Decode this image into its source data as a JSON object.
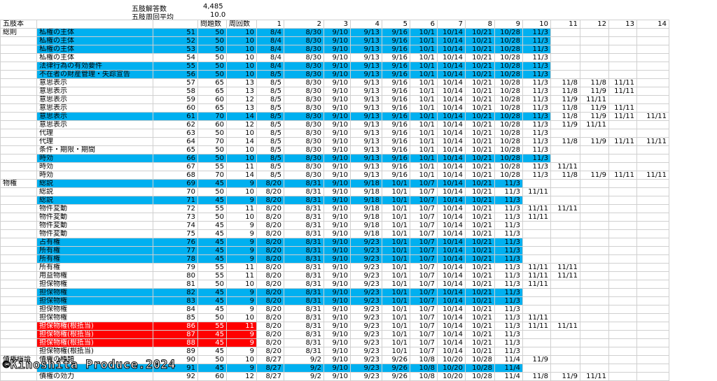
{
  "summary": {
    "answers_label": "五肢解答数",
    "answers": "4,485",
    "average_label": "五肢周回平均",
    "average": "10.0"
  },
  "table": {
    "header": {
      "book": "五肢本",
      "questions": "問題数",
      "rounds": "周回数",
      "round_numbers": [
        1,
        2,
        3,
        4,
        5,
        6,
        7,
        8,
        9,
        10,
        11,
        12,
        13,
        14
      ]
    },
    "rows": [
      {
        "group": "総則",
        "topic": "私権の主体",
        "no": 51,
        "questions": 50,
        "rounds": 10,
        "fill": "blue",
        "dates": [
          "8/4",
          "8/30",
          "9/10",
          "9/13",
          "9/16",
          "10/1",
          "10/14",
          "10/21",
          "10/28",
          "11/3"
        ]
      },
      {
        "topic": "私権の主体",
        "no": 52,
        "questions": 50,
        "rounds": 10,
        "fill": "blue",
        "dates": [
          "8/4",
          "8/30",
          "9/10",
          "9/13",
          "9/16",
          "10/1",
          "10/14",
          "10/21",
          "10/28",
          "11/3"
        ]
      },
      {
        "topic": "私権の主体",
        "no": 53,
        "questions": 50,
        "rounds": 10,
        "fill": "blue",
        "dates": [
          "8/4",
          "8/30",
          "9/10",
          "9/13",
          "9/16",
          "10/1",
          "10/14",
          "10/21",
          "10/28",
          "11/3"
        ]
      },
      {
        "topic": "私権の主体",
        "no": 54,
        "questions": 50,
        "rounds": 10,
        "dates": [
          "8/4",
          "8/30",
          "9/10",
          "9/13",
          "9/16",
          "10/1",
          "10/14",
          "10/21",
          "10/28",
          "11/3"
        ]
      },
      {
        "topic": "法律行為の有効要件",
        "no": 55,
        "questions": 50,
        "rounds": 10,
        "fill": "blue",
        "dates": [
          "8/4",
          "8/30",
          "9/10",
          "9/13",
          "9/16",
          "10/1",
          "10/14",
          "10/21",
          "10/28",
          "11/3"
        ]
      },
      {
        "topic": "不在者の財産管理・失踪宣告",
        "no": 56,
        "questions": 50,
        "rounds": 10,
        "fill": "blue",
        "dates": [
          "8/5",
          "8/30",
          "9/10",
          "9/13",
          "9/16",
          "10/1",
          "10/14",
          "10/21",
          "10/28",
          "11/3"
        ]
      },
      {
        "topic": "意思表示",
        "no": 57,
        "questions": 65,
        "rounds": 13,
        "dates": [
          "8/5",
          "8/30",
          "9/10",
          "9/13",
          "9/16",
          "10/1",
          "10/14",
          "10/21",
          "10/28",
          "11/3",
          "11/8",
          "11/8",
          "11/11"
        ]
      },
      {
        "topic": "意思表示",
        "no": 58,
        "questions": 65,
        "rounds": 13,
        "dates": [
          "8/5",
          "8/30",
          "9/10",
          "9/13",
          "9/16",
          "10/1",
          "10/14",
          "10/21",
          "10/28",
          "11/3",
          "11/8",
          "11/9",
          "11/11"
        ]
      },
      {
        "topic": "意思表示",
        "no": 59,
        "questions": 60,
        "rounds": 12,
        "dates": [
          "8/5",
          "8/30",
          "9/10",
          "9/13",
          "9/16",
          "10/1",
          "10/14",
          "10/21",
          "10/28",
          "11/3",
          "11/9",
          "11/11"
        ]
      },
      {
        "topic": "意思表示",
        "no": 60,
        "questions": 65,
        "rounds": 13,
        "dates": [
          "8/5",
          "8/30",
          "9/10",
          "9/13",
          "9/16",
          "10/1",
          "10/14",
          "10/21",
          "10/28",
          "11/3",
          "11/8",
          "11/9",
          "11/11"
        ]
      },
      {
        "topic": "意思表示",
        "no": 61,
        "questions": 70,
        "rounds": 14,
        "fill": "blue",
        "dates": [
          "8/5",
          "8/30",
          "9/10",
          "9/13",
          "9/16",
          "10/1",
          "10/14",
          "10/21",
          "10/28",
          "11/3",
          "11/8",
          "11/9",
          "11/11",
          "11/11"
        ]
      },
      {
        "topic": "意思表示",
        "no": 62,
        "questions": 60,
        "rounds": 12,
        "dates": [
          "8/5",
          "8/30",
          "9/10",
          "9/13",
          "9/16",
          "10/1",
          "10/14",
          "10/21",
          "10/28",
          "11/3",
          "11/9",
          "11/11"
        ]
      },
      {
        "topic": "代理",
        "no": 63,
        "questions": 50,
        "rounds": 10,
        "dates": [
          "8/5",
          "8/30",
          "9/10",
          "9/13",
          "9/16",
          "10/1",
          "10/14",
          "10/21",
          "10/28",
          "11/3"
        ]
      },
      {
        "topic": "代理",
        "no": 64,
        "questions": 70,
        "rounds": 14,
        "dates": [
          "8/5",
          "8/30",
          "9/10",
          "9/13",
          "9/16",
          "10/1",
          "10/14",
          "10/21",
          "10/28",
          "11/3",
          "11/8",
          "11/9",
          "11/11",
          "11/11"
        ]
      },
      {
        "topic": "条件・期限・期間",
        "no": 65,
        "questions": 50,
        "rounds": 10,
        "dates": [
          "8/5",
          "8/30",
          "9/10",
          "9/13",
          "9/16",
          "10/1",
          "10/14",
          "10/21",
          "10/28",
          "11/3"
        ]
      },
      {
        "topic": "時効",
        "no": 66,
        "questions": 50,
        "rounds": 10,
        "fill": "blue",
        "dates": [
          "8/5",
          "8/30",
          "9/10",
          "9/13",
          "9/16",
          "10/1",
          "10/14",
          "10/21",
          "10/28",
          "11/3"
        ]
      },
      {
        "topic": "時効",
        "no": 67,
        "questions": 55,
        "rounds": 11,
        "dates": [
          "8/5",
          "8/30",
          "9/10",
          "9/13",
          "9/16",
          "10/1",
          "10/14",
          "10/21",
          "10/28",
          "11/3",
          "11/11"
        ]
      },
      {
        "topic": "時効",
        "no": 68,
        "questions": 70,
        "rounds": 14,
        "dates": [
          "8/5",
          "8/30",
          "9/10",
          "9/13",
          "9/16",
          "10/1",
          "10/14",
          "10/21",
          "10/28",
          "11/3",
          "11/8",
          "11/9",
          "11/11",
          "11/11"
        ]
      },
      {
        "group": "物権",
        "topic": "総説",
        "no": 69,
        "questions": 45,
        "rounds": 9,
        "fill": "blue",
        "dates": [
          "8/20",
          "8/31",
          "9/10",
          "9/18",
          "10/1",
          "10/7",
          "10/14",
          "10/21",
          "11/3"
        ]
      },
      {
        "topic": "総説",
        "no": 70,
        "questions": 50,
        "rounds": 10,
        "dates": [
          "8/20",
          "8/31",
          "9/10",
          "9/18",
          "10/1",
          "10/7",
          "10/14",
          "10/21",
          "11/3",
          "11/11"
        ]
      },
      {
        "topic": "総説",
        "no": 71,
        "questions": 45,
        "rounds": 9,
        "fill": "blue",
        "dates": [
          "8/20",
          "8/31",
          "9/10",
          "9/18",
          "10/1",
          "10/7",
          "10/14",
          "10/21",
          "11/3"
        ]
      },
      {
        "topic": "物件変動",
        "no": 72,
        "questions": 55,
        "rounds": 11,
        "dates": [
          "8/20",
          "8/31",
          "9/10",
          "9/18",
          "10/1",
          "10/7",
          "10/14",
          "10/21",
          "11/3",
          "11/11",
          "11/11"
        ]
      },
      {
        "topic": "物件変動",
        "no": 73,
        "questions": 50,
        "rounds": 10,
        "dates": [
          "8/20",
          "8/31",
          "9/10",
          "9/18",
          "10/1",
          "10/7",
          "10/14",
          "10/21",
          "11/3",
          "11/11"
        ]
      },
      {
        "topic": "物件変動",
        "no": 74,
        "questions": 45,
        "rounds": 9,
        "dates": [
          "8/20",
          "8/31",
          "9/10",
          "9/18",
          "10/1",
          "10/7",
          "10/14",
          "10/21",
          "11/3"
        ]
      },
      {
        "topic": "物件変動",
        "no": 75,
        "questions": 45,
        "rounds": 9,
        "dates": [
          "8/20",
          "8/31",
          "9/10",
          "9/18",
          "10/1",
          "10/7",
          "10/14",
          "10/21",
          "11/3"
        ]
      },
      {
        "topic": "占有権",
        "no": 76,
        "questions": 45,
        "rounds": 9,
        "fill": "blue",
        "dates": [
          "8/20",
          "8/31",
          "9/10",
          "9/23",
          "10/1",
          "10/7",
          "10/14",
          "10/21",
          "11/3"
        ]
      },
      {
        "topic": "所有権",
        "no": 77,
        "questions": 45,
        "rounds": 9,
        "fill": "blue",
        "dates": [
          "8/20",
          "8/31",
          "9/10",
          "9/23",
          "10/1",
          "10/7",
          "10/14",
          "10/21",
          "11/3"
        ]
      },
      {
        "topic": "所有権",
        "no": 78,
        "questions": 45,
        "rounds": 9,
        "fill": "blue",
        "dates": [
          "8/20",
          "8/31",
          "9/10",
          "9/23",
          "10/1",
          "10/7",
          "10/14",
          "10/21",
          "11/3"
        ]
      },
      {
        "topic": "所有権",
        "no": 79,
        "questions": 55,
        "rounds": 11,
        "dates": [
          "8/20",
          "8/31",
          "9/10",
          "9/23",
          "10/1",
          "10/7",
          "10/14",
          "10/21",
          "11/3",
          "11/11",
          "11/11"
        ]
      },
      {
        "topic": "用益物権",
        "no": 80,
        "questions": 55,
        "rounds": 11,
        "dates": [
          "8/20",
          "8/31",
          "9/10",
          "9/23",
          "10/1",
          "10/7",
          "10/14",
          "10/21",
          "11/3",
          "11/11",
          "11/11"
        ]
      },
      {
        "topic": "担保物権",
        "no": 81,
        "questions": 50,
        "rounds": 10,
        "dates": [
          "8/20",
          "8/31",
          "9/10",
          "9/23",
          "10/1",
          "10/7",
          "10/14",
          "10/21",
          "11/3",
          "11/11"
        ]
      },
      {
        "topic": "担保物権",
        "no": 82,
        "questions": 45,
        "rounds": 9,
        "fill": "blue",
        "dates": [
          "8/20",
          "8/31",
          "9/10",
          "9/23",
          "10/1",
          "10/7",
          "10/14",
          "10/21",
          "11/3"
        ]
      },
      {
        "topic": "担保物権",
        "no": 83,
        "questions": 45,
        "rounds": 9,
        "fill": "blue",
        "dates": [
          "8/20",
          "8/31",
          "9/10",
          "9/23",
          "10/1",
          "10/7",
          "10/14",
          "10/21",
          "11/3"
        ]
      },
      {
        "topic": "担保物権",
        "no": 84,
        "questions": 45,
        "rounds": 9,
        "dates": [
          "8/20",
          "8/31",
          "9/10",
          "9/23",
          "10/1",
          "10/7",
          "10/14",
          "10/21",
          "11/3"
        ]
      },
      {
        "topic": "担保物権",
        "no": 85,
        "questions": 50,
        "rounds": 10,
        "dates": [
          "8/20",
          "8/31",
          "9/10",
          "9/23",
          "10/1",
          "10/7",
          "10/14",
          "10/21",
          "11/3",
          "11/11"
        ]
      },
      {
        "topic": "担保物権(根抵当)",
        "no": 86,
        "questions": 55,
        "rounds": 11,
        "fill": "red",
        "dates": [
          "8/20",
          "8/31",
          "9/10",
          "9/23",
          "10/1",
          "10/7",
          "10/14",
          "10/21",
          "11/3",
          "11/11",
          "11/11"
        ]
      },
      {
        "topic": "担保物権(根抵当)",
        "no": 87,
        "questions": 45,
        "rounds": 9,
        "fill": "red",
        "dates": [
          "8/20",
          "8/31",
          "9/10",
          "9/23",
          "10/1",
          "10/7",
          "10/14",
          "10/21",
          "11/3"
        ]
      },
      {
        "topic": "担保物権(根抵当)",
        "no": 88,
        "questions": 45,
        "rounds": 9,
        "fill": "red",
        "dates": [
          "8/20",
          "8/31",
          "9/10",
          "9/23",
          "10/1",
          "10/7",
          "10/14",
          "10/21",
          "11/3"
        ]
      },
      {
        "topic": "担保物権(根抵当)",
        "no": 89,
        "questions": 45,
        "rounds": 9,
        "dates": [
          "8/20",
          "8/31",
          "9/10",
          "9/23",
          "10/1",
          "10/7",
          "10/14",
          "10/21",
          "11/3"
        ]
      },
      {
        "group": "債権総論",
        "topic": "債権の種類",
        "no": 90,
        "questions": 50,
        "rounds": 10,
        "dates": [
          "8/27",
          "9/2",
          "9/10",
          "9/23",
          "9/26",
          "10/8",
          "10/20",
          "10/28",
          "11/4",
          "11/9"
        ]
      },
      {
        "no": 91,
        "questions": 45,
        "rounds": 9,
        "fill": "blue",
        "dates": [
          "8/27",
          "9/2",
          "9/10",
          "9/23",
          "9/26",
          "10/8",
          "10/20",
          "10/28",
          "11/4"
        ]
      },
      {
        "topic": "債権の効力",
        "no": 92,
        "questions": 60,
        "rounds": 12,
        "dates": [
          "8/27",
          "9/2",
          "9/10",
          "9/23",
          "9/26",
          "10/8",
          "10/20",
          "10/28",
          "11/4",
          "11/8",
          "11/9",
          "11/11"
        ]
      }
    ]
  },
  "watermark": "©Kinoshita Produce.2024"
}
